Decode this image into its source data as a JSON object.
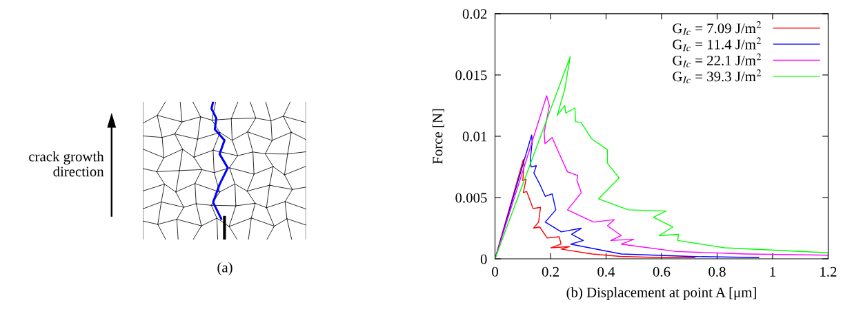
{
  "chart_data": [
    {
      "type": "other",
      "annotations": [
        "crack growth direction",
        "(a)"
      ]
    },
    {
      "type": "line",
      "xlabel": "(b) Displacement at point A [μm]",
      "ylabel": "Force [N]",
      "xlim": [
        0,
        1.2
      ],
      "ylim": [
        0,
        0.02
      ],
      "xticks": [
        0,
        0.2,
        0.4,
        0.6,
        0.8,
        1,
        1.2
      ],
      "yticks": [
        0,
        0.005,
        0.01,
        0.015,
        0.02
      ],
      "grid": false,
      "legend": "top right",
      "marker": "none",
      "line_style": "solid",
      "series": [
        {
          "name": "G$_{Ic}$ = 7.09 J/m$^{2}$",
          "color": "#ff0000",
          "x": [
            0,
            0.102,
            0.104,
            0.1,
            0.112,
            0.102,
            0.114,
            0.137,
            0.164,
            0.157,
            0.139,
            0.161,
            0.188,
            0.231,
            0.238,
            0.201,
            0.268,
            0.238,
            0.35,
            0.45,
            0.6,
            0.72
          ],
          "values": [
            0,
            0.0081,
            0.0075,
            0.0064,
            0.0065,
            0.0054,
            0.0055,
            0.0041,
            0.0042,
            0.003,
            0.0025,
            0.0026,
            0.0017,
            0.0018,
            0.0012,
            0.0009,
            0.001,
            0.0008,
            0.0004,
            0.0002,
            0.0001,
            0.0001
          ]
        },
        {
          "name": "G$_{Ic}$ = 11.4 J/m$^{2}$",
          "color": "#0000ff",
          "x": [
            0,
            0.132,
            0.134,
            0.127,
            0.13,
            0.149,
            0.14,
            0.161,
            0.181,
            0.206,
            0.219,
            0.181,
            0.239,
            0.311,
            0.276,
            0.318,
            0.273,
            0.455,
            0.7,
            0.95
          ],
          "values": [
            0,
            0.0101,
            0.0095,
            0.0081,
            0.0075,
            0.0076,
            0.007,
            0.0061,
            0.0051,
            0.0053,
            0.004,
            0.003,
            0.0022,
            0.0025,
            0.002,
            0.0015,
            0.0012,
            0.0004,
            0.0002,
            0.0001
          ]
        },
        {
          "name": "G$_{Ic}$ = 22.1 J/m$^{2}$",
          "color": "#ff00ff",
          "x": [
            0,
            0.186,
            0.196,
            0.177,
            0.18,
            0.206,
            0.223,
            0.261,
            0.298,
            0.295,
            0.311,
            0.261,
            0.355,
            0.43,
            0.405,
            0.455,
            0.417,
            0.5,
            0.455,
            0.653,
            0.9,
            1.2
          ],
          "values": [
            0,
            0.0133,
            0.0125,
            0.0103,
            0.0094,
            0.0099,
            0.009,
            0.0071,
            0.0068,
            0.0064,
            0.0054,
            0.004,
            0.003,
            0.0032,
            0.0027,
            0.0019,
            0.0015,
            0.0016,
            0.0012,
            0.0006,
            0.0004,
            0.0003
          ]
        },
        {
          "name": "G$_{Ic}$ = 39.3 J/m$^{2}$",
          "color": "#00ff00",
          "x": [
            0,
            0.271,
            0.251,
            0.224,
            0.251,
            0.255,
            0.288,
            0.29,
            0.311,
            0.348,
            0.405,
            0.405,
            0.447,
            0.373,
            0.48,
            0.616,
            0.571,
            0.641,
            0.591,
            0.661,
            0.658,
            0.827,
            1.2
          ],
          "values": [
            0,
            0.0165,
            0.0138,
            0.0117,
            0.0125,
            0.0119,
            0.0123,
            0.0112,
            0.0111,
            0.0098,
            0.0089,
            0.0078,
            0.0066,
            0.0049,
            0.004,
            0.0039,
            0.0034,
            0.0026,
            0.0019,
            0.002,
            0.0015,
            0.0009,
            0.0005
          ]
        }
      ]
    }
  ]
}
